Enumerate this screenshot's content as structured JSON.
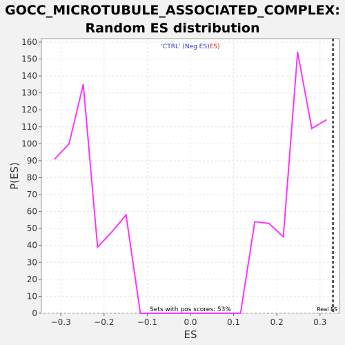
{
  "title_line1": "GOCC_MICROTUBULE_ASSOCIATED_COMPLEX:",
  "title_line2": "Random ES distribution",
  "legend": {
    "prefix": "'CTRL' (Neg ES)",
    "suffix": "ES)",
    "prefix_color": "#3333cc",
    "suffix_color": "#cc2222"
  },
  "annotation": "Sets with pos scores: 53%",
  "real_es_label": "Real ES",
  "colors": {
    "line": "#ff33ff",
    "real_es": "#000000",
    "plot_bg": "#ffffff",
    "grid": "#e6e6e6"
  },
  "chart_data": {
    "type": "line",
    "xlabel": "ES",
    "ylabel": "P(ES)",
    "xlim": [
      -0.345,
      0.345
    ],
    "ylim": [
      0,
      162
    ],
    "x_ticks": [
      -0.3,
      -0.2,
      -0.1,
      0.0,
      0.1,
      0.2,
      0.3
    ],
    "x_tick_labels": [
      "−0.3",
      "−0.2",
      "−0.1",
      "0.0",
      "0.1",
      "0.2",
      "0.3"
    ],
    "y_ticks": [
      0,
      10,
      20,
      30,
      40,
      50,
      60,
      70,
      80,
      90,
      100,
      110,
      120,
      130,
      140,
      150,
      160
    ],
    "y_tick_labels": [
      "0",
      "10",
      "20",
      "30",
      "40",
      "50",
      "60",
      "70",
      "80",
      "90",
      "100",
      "110",
      "120",
      "130",
      "140",
      "150",
      "160"
    ],
    "grid": true,
    "series": [
      {
        "x": [
          -0.314,
          -0.281,
          -0.248,
          -0.215,
          -0.182,
          -0.149,
          -0.116,
          -0.083,
          -0.05,
          -0.017,
          0.017,
          0.05,
          0.083,
          0.116,
          0.149,
          0.182,
          0.215,
          0.248,
          0.281,
          0.314
        ],
        "values": [
          91,
          100,
          135,
          39,
          48,
          58,
          0,
          0,
          0,
          0,
          0,
          0,
          0,
          0,
          54,
          53,
          45,
          154,
          109,
          114
        ]
      }
    ],
    "real_es": 0.33
  }
}
